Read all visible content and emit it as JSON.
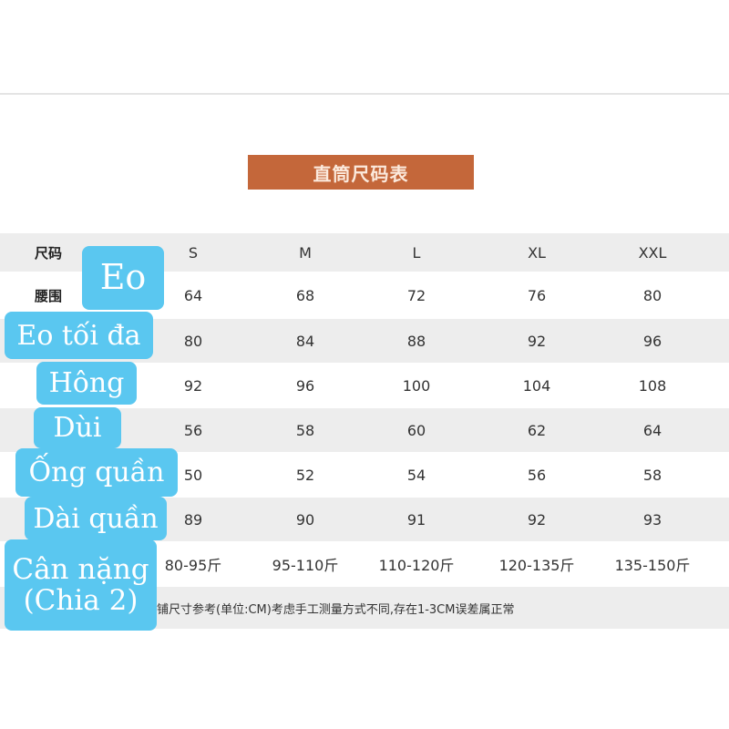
{
  "title": "直筒尺码表",
  "header": {
    "label": "尺码",
    "sizes": [
      "S",
      "M",
      "L",
      "XL",
      "XXL"
    ]
  },
  "rows": [
    {
      "label": "腰围",
      "values": [
        "64",
        "68",
        "72",
        "76",
        "80"
      ]
    },
    {
      "label": "",
      "values": [
        "80",
        "84",
        "88",
        "92",
        "96"
      ]
    },
    {
      "label": "",
      "values": [
        "92",
        "96",
        "100",
        "104",
        "108"
      ]
    },
    {
      "label": "",
      "values": [
        "56",
        "58",
        "60",
        "62",
        "64"
      ]
    },
    {
      "label": "",
      "values": [
        "50",
        "52",
        "54",
        "56",
        "58"
      ]
    },
    {
      "label": "",
      "values": [
        "89",
        "90",
        "91",
        "92",
        "93"
      ]
    },
    {
      "label": "",
      "values": [
        "80-95斤",
        "95-110斤",
        "110-120斤",
        "120-135斤",
        "135-150斤"
      ]
    }
  ],
  "note": "铺尺寸参考(单位:CM)考虑手工测量方式不同,存在1-3CM误差属正常",
  "overlay_labels": [
    "Eo",
    "Eo tối đa",
    "Hông",
    "Dùi",
    "Ống quần",
    "Dài quần",
    "Cân nặng (Chia 2)"
  ],
  "colors": {
    "title_bar": "#c4673a",
    "overlay": "#5ac7f0"
  }
}
